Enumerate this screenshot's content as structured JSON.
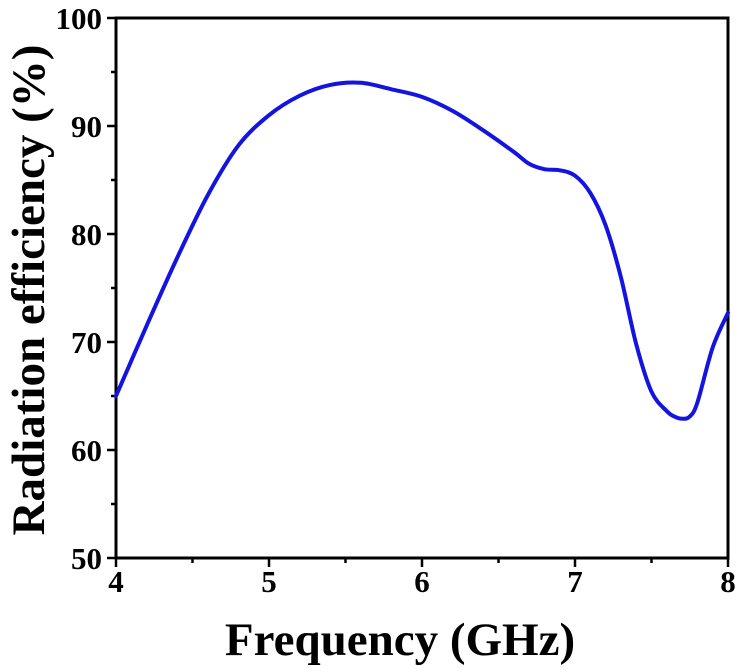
{
  "chart_data": {
    "type": "line",
    "title": "",
    "xlabel": "Frequency (GHz)",
    "ylabel": "Radiation efficiency (%)",
    "xlim": [
      4,
      8
    ],
    "ylim": [
      50,
      100
    ],
    "x_ticks": [
      4,
      5,
      6,
      7,
      8
    ],
    "y_ticks": [
      50,
      60,
      70,
      80,
      90,
      100
    ],
    "grid": false,
    "legend": "none",
    "line_color": "#1414e0",
    "series": [
      {
        "x": [
          4.0,
          4.2,
          4.4,
          4.6,
          4.8,
          5.0,
          5.2,
          5.4,
          5.6,
          5.8,
          6.0,
          6.2,
          6.4,
          6.6,
          6.7,
          6.8,
          6.9,
          7.0,
          7.1,
          7.2,
          7.3,
          7.4,
          7.5,
          7.6,
          7.65,
          7.7,
          7.75,
          7.8,
          7.9,
          8.0
        ],
        "values": [
          65.0,
          71.5,
          77.8,
          83.6,
          88.2,
          91.0,
          92.8,
          93.8,
          94.0,
          93.4,
          92.7,
          91.4,
          89.6,
          87.6,
          86.5,
          86.0,
          85.9,
          85.4,
          83.8,
          80.8,
          76.0,
          69.8,
          65.4,
          63.6,
          63.1,
          62.9,
          63.1,
          64.4,
          69.5,
          72.7
        ]
      }
    ]
  }
}
